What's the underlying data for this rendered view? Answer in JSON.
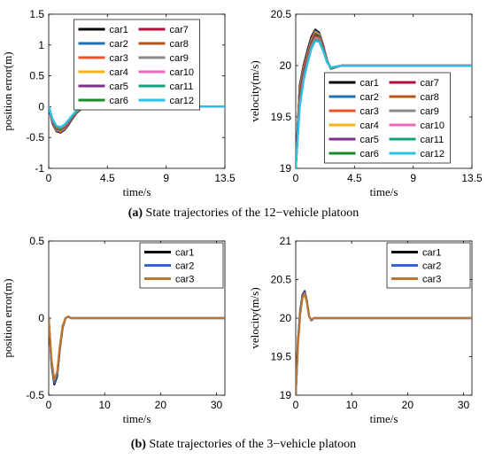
{
  "captions": {
    "a": {
      "tag": "(a)",
      "text": " State trajectories of the 12−vehicle platoon"
    },
    "b": {
      "tag": "(b)",
      "text": " State trajectories of the 3−vehicle platoon"
    }
  },
  "chart_data": [
    {
      "type": "line",
      "id": "a-pos",
      "xlabel": "time/s",
      "ylabel": "position error(m)",
      "xlim": [
        0,
        13.5
      ],
      "ylim": [
        -1,
        1.5
      ],
      "xticks": [
        "0",
        "4.5",
        "9",
        "13.5"
      ],
      "yticks": [
        "-1",
        "-0.5",
        "0",
        "0.5",
        "1",
        "1.5"
      ],
      "legend_position": "top-center",
      "legend_columns": 2,
      "x": [
        0,
        0.3,
        0.6,
        0.9,
        1.2,
        1.5,
        1.8,
        2.1,
        2.4,
        2.7,
        3.0,
        3.5,
        4.0,
        5.0,
        7.0,
        9.0,
        11.0,
        13.5
      ],
      "series": [
        {
          "name": "car1",
          "color": "#000000",
          "values": [
            0,
            -0.28,
            -0.4,
            -0.42,
            -0.38,
            -0.3,
            -0.2,
            -0.11,
            -0.05,
            -0.01,
            0.01,
            0.01,
            0.0,
            0.0,
            0.0,
            0.0,
            0.0,
            0.0
          ]
        },
        {
          "name": "car2",
          "color": "#1f6fb2",
          "values": [
            0,
            -0.27,
            -0.39,
            -0.41,
            -0.37,
            -0.29,
            -0.19,
            -0.1,
            -0.04,
            -0.01,
            0.01,
            0.01,
            0.0,
            0.0,
            0.0,
            0.0,
            0.0,
            0.0
          ]
        },
        {
          "name": "car3",
          "color": "#e8542a",
          "values": [
            0,
            -0.26,
            -0.38,
            -0.4,
            -0.36,
            -0.28,
            -0.19,
            -0.1,
            -0.04,
            0.0,
            0.01,
            0.01,
            0.0,
            0.0,
            0.0,
            0.0,
            0.0,
            0.0
          ]
        },
        {
          "name": "car4",
          "color": "#f5b21a",
          "values": [
            0,
            -0.25,
            -0.37,
            -0.39,
            -0.35,
            -0.27,
            -0.18,
            -0.09,
            -0.04,
            0.0,
            0.01,
            0.01,
            0.0,
            0.0,
            0.0,
            0.0,
            0.0,
            0.0
          ]
        },
        {
          "name": "car5",
          "color": "#7e2f8e",
          "values": [
            0,
            -0.25,
            -0.36,
            -0.38,
            -0.34,
            -0.27,
            -0.18,
            -0.09,
            -0.03,
            0.0,
            0.01,
            0.01,
            0.0,
            0.0,
            0.0,
            0.0,
            0.0,
            0.0
          ]
        },
        {
          "name": "car6",
          "color": "#1a8a2a",
          "values": [
            0,
            -0.24,
            -0.35,
            -0.37,
            -0.33,
            -0.26,
            -0.17,
            -0.09,
            -0.03,
            0.0,
            0.01,
            0.01,
            0.0,
            0.0,
            0.0,
            0.0,
            0.0,
            0.0
          ]
        },
        {
          "name": "car7",
          "color": "#b0103a",
          "values": [
            0,
            -0.23,
            -0.34,
            -0.36,
            -0.33,
            -0.25,
            -0.17,
            -0.08,
            -0.03,
            0.0,
            0.01,
            0.01,
            0.0,
            0.0,
            0.0,
            0.0,
            0.0,
            0.0
          ]
        },
        {
          "name": "car8",
          "color": "#b5541b",
          "values": [
            0,
            -0.23,
            -0.34,
            -0.36,
            -0.32,
            -0.25,
            -0.16,
            -0.08,
            -0.03,
            0.0,
            0.01,
            0.01,
            0.0,
            0.0,
            0.0,
            0.0,
            0.0,
            0.0
          ]
        },
        {
          "name": "car9",
          "color": "#8a8a8a",
          "values": [
            0,
            -0.22,
            -0.33,
            -0.35,
            -0.31,
            -0.24,
            -0.16,
            -0.08,
            -0.03,
            0.0,
            0.01,
            0.01,
            0.0,
            0.0,
            0.0,
            0.0,
            0.0,
            0.0
          ]
        },
        {
          "name": "car10",
          "color": "#e86ab8",
          "values": [
            0,
            -0.22,
            -0.32,
            -0.34,
            -0.31,
            -0.24,
            -0.15,
            -0.07,
            -0.02,
            0.0,
            0.01,
            0.01,
            0.0,
            0.0,
            0.0,
            0.0,
            0.0,
            0.0
          ]
        },
        {
          "name": "car11",
          "color": "#13a37a",
          "values": [
            0,
            -0.21,
            -0.32,
            -0.34,
            -0.3,
            -0.23,
            -0.15,
            -0.07,
            -0.02,
            0.0,
            0.01,
            0.01,
            0.0,
            0.0,
            0.0,
            0.0,
            0.0,
            0.0
          ]
        },
        {
          "name": "car12",
          "color": "#2ec0e8",
          "values": [
            0,
            -0.2,
            -0.31,
            -0.33,
            -0.29,
            -0.22,
            -0.14,
            -0.07,
            -0.02,
            0.0,
            0.01,
            0.01,
            0.0,
            0.0,
            0.0,
            0.0,
            0.0,
            0.0
          ]
        }
      ]
    },
    {
      "type": "line",
      "id": "a-vel",
      "xlabel": "time/s",
      "ylabel": "velocity(m/s)",
      "xlim": [
        0,
        13.5
      ],
      "ylim": [
        19,
        20.5
      ],
      "xticks": [
        "0",
        "4.5",
        "9",
        "13.5"
      ],
      "yticks": [
        "19",
        "19.5",
        "20",
        "20.5"
      ],
      "legend_position": "bottom-center",
      "legend_columns": 2,
      "x": [
        0,
        0.3,
        0.6,
        0.9,
        1.2,
        1.5,
        1.8,
        2.1,
        2.4,
        2.7,
        3.0,
        3.5,
        4.0,
        5.0,
        7.0,
        9.0,
        11.0,
        13.5
      ],
      "series": [
        {
          "name": "car1",
          "color": "#000000",
          "values": [
            19.0,
            19.8,
            20.0,
            20.15,
            20.28,
            20.35,
            20.32,
            20.2,
            20.05,
            19.97,
            19.98,
            20.0,
            20.0,
            20.0,
            20.0,
            20.0,
            20.0,
            20.0
          ]
        },
        {
          "name": "car2",
          "color": "#1f6fb2",
          "values": [
            19.0,
            19.78,
            19.98,
            20.13,
            20.26,
            20.34,
            20.31,
            20.19,
            20.05,
            19.97,
            19.98,
            20.0,
            20.0,
            20.0,
            20.0,
            20.0,
            20.0,
            20.0
          ]
        },
        {
          "name": "car3",
          "color": "#e8542a",
          "values": [
            19.0,
            19.76,
            19.97,
            20.12,
            20.25,
            20.33,
            20.3,
            20.19,
            20.05,
            19.97,
            19.98,
            20.0,
            20.0,
            20.0,
            20.0,
            20.0,
            20.0,
            20.0
          ]
        },
        {
          "name": "car4",
          "color": "#f5b21a",
          "values": [
            19.0,
            19.74,
            19.95,
            20.1,
            20.24,
            20.32,
            20.3,
            20.18,
            20.04,
            19.97,
            19.98,
            20.0,
            20.0,
            20.0,
            20.0,
            20.0,
            20.0,
            20.0
          ]
        },
        {
          "name": "car5",
          "color": "#7e2f8e",
          "values": [
            19.0,
            19.72,
            19.94,
            20.09,
            20.23,
            20.31,
            20.29,
            20.18,
            20.04,
            19.97,
            19.98,
            20.0,
            20.0,
            20.0,
            20.0,
            20.0,
            20.0,
            20.0
          ]
        },
        {
          "name": "car6",
          "color": "#1a8a2a",
          "values": [
            19.0,
            19.7,
            19.92,
            20.08,
            20.22,
            20.3,
            20.28,
            20.17,
            20.04,
            19.97,
            19.98,
            20.0,
            20.0,
            20.0,
            20.0,
            20.0,
            20.0,
            20.0
          ]
        },
        {
          "name": "car7",
          "color": "#b0103a",
          "values": [
            19.0,
            19.68,
            19.91,
            20.07,
            20.21,
            20.29,
            20.27,
            20.17,
            20.04,
            19.98,
            19.98,
            20.0,
            20.0,
            20.0,
            20.0,
            20.0,
            20.0,
            20.0
          ]
        },
        {
          "name": "car8",
          "color": "#b5541b",
          "values": [
            19.0,
            19.66,
            19.9,
            20.06,
            20.2,
            20.28,
            20.27,
            20.16,
            20.04,
            19.98,
            19.98,
            20.0,
            20.0,
            20.0,
            20.0,
            20.0,
            20.0,
            20.0
          ]
        },
        {
          "name": "car9",
          "color": "#8a8a8a",
          "values": [
            19.0,
            19.64,
            19.88,
            20.05,
            20.19,
            20.27,
            20.26,
            20.16,
            20.04,
            19.98,
            19.98,
            20.0,
            20.0,
            20.0,
            20.0,
            20.0,
            20.0,
            20.0
          ]
        },
        {
          "name": "car10",
          "color": "#e86ab8",
          "values": [
            19.0,
            19.62,
            19.87,
            20.04,
            20.18,
            20.26,
            20.25,
            20.15,
            20.03,
            19.98,
            19.99,
            20.0,
            20.0,
            20.0,
            20.0,
            20.0,
            20.0,
            20.0
          ]
        },
        {
          "name": "car11",
          "color": "#13a37a",
          "values": [
            19.0,
            19.6,
            19.86,
            20.03,
            20.17,
            20.25,
            20.24,
            20.15,
            20.03,
            19.98,
            19.99,
            20.0,
            20.0,
            20.0,
            20.0,
            20.0,
            20.0,
            20.0
          ]
        },
        {
          "name": "car12",
          "color": "#2ec0e8",
          "values": [
            19.0,
            19.58,
            19.85,
            20.02,
            20.16,
            20.24,
            20.23,
            20.14,
            20.03,
            19.98,
            19.99,
            20.0,
            20.0,
            20.0,
            20.0,
            20.0,
            20.0,
            20.0
          ]
        }
      ]
    },
    {
      "type": "line",
      "id": "b-pos",
      "xlabel": "time/s",
      "ylabel": "position error(m)",
      "xlim": [
        0,
        31.5
      ],
      "ylim": [
        -0.5,
        0.5
      ],
      "xticks": [
        "0",
        "10",
        "20",
        "30"
      ],
      "yticks": [
        "-0.5",
        "0",
        "0.5"
      ],
      "legend_position": "top-right",
      "legend_columns": 1,
      "x": [
        0,
        0.5,
        1.0,
        1.5,
        2.0,
        2.5,
        3.0,
        3.5,
        4.0,
        5.0,
        10.0,
        15.0,
        20.0,
        25.0,
        31.5
      ],
      "series": [
        {
          "name": "car1",
          "color": "#000000",
          "values": [
            0,
            -0.3,
            -0.43,
            -0.38,
            -0.2,
            -0.06,
            0.0,
            0.01,
            0.0,
            0.0,
            0.0,
            0.0,
            0.0,
            0.0,
            0.0
          ]
        },
        {
          "name": "car2",
          "color": "#3a66c4",
          "values": [
            0,
            -0.29,
            -0.42,
            -0.37,
            -0.19,
            -0.05,
            0.0,
            0.01,
            0.0,
            0.0,
            0.0,
            0.0,
            0.0,
            0.0,
            0.0
          ]
        },
        {
          "name": "car3",
          "color": "#c0762a",
          "values": [
            0,
            -0.27,
            -0.4,
            -0.35,
            -0.18,
            -0.05,
            0.0,
            0.01,
            0.0,
            0.0,
            0.0,
            0.0,
            0.0,
            0.0,
            0.0
          ]
        }
      ]
    },
    {
      "type": "line",
      "id": "b-vel",
      "xlabel": "time/s",
      "ylabel": "velocity(m/s)",
      "xlim": [
        0,
        31.5
      ],
      "ylim": [
        19,
        21
      ],
      "xticks": [
        "0",
        "10",
        "20",
        "30"
      ],
      "yticks": [
        "19",
        "19.5",
        "20",
        "20.5",
        "21"
      ],
      "legend_position": "top-right",
      "legend_columns": 1,
      "x": [
        0,
        0.4,
        0.8,
        1.2,
        1.6,
        2.0,
        2.4,
        2.8,
        3.2,
        4.0,
        10.0,
        15.0,
        20.0,
        25.0,
        31.5
      ],
      "series": [
        {
          "name": "car1",
          "color": "#000000",
          "values": [
            19.0,
            19.7,
            20.1,
            20.3,
            20.35,
            20.22,
            20.02,
            19.97,
            20.0,
            20.0,
            20.0,
            20.0,
            20.0,
            20.0,
            20.0
          ]
        },
        {
          "name": "car2",
          "color": "#3a66c4",
          "values": [
            19.0,
            19.68,
            20.08,
            20.29,
            20.34,
            20.21,
            20.02,
            19.97,
            20.0,
            20.0,
            20.0,
            20.0,
            20.0,
            20.0,
            20.0
          ]
        },
        {
          "name": "car3",
          "color": "#c0762a",
          "values": [
            19.0,
            19.65,
            20.05,
            20.26,
            20.32,
            20.2,
            20.02,
            19.98,
            20.0,
            20.0,
            20.0,
            20.0,
            20.0,
            20.0,
            20.0
          ]
        }
      ]
    }
  ]
}
